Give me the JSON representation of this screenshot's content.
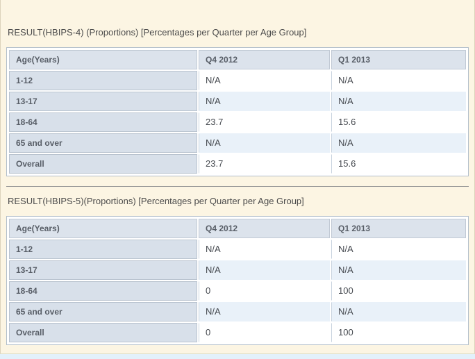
{
  "colors": {
    "page_background": "#fcf5e3",
    "table_header_bg": "#dce3ec",
    "age_column_bg": "#d8e0ea",
    "alt_row_bg": "#e9f1f9",
    "table_border": "#b1becb",
    "separator": "#969696",
    "bottom_strip_bg": "#e3f1fb"
  },
  "sections": [
    {
      "title": "RESULT(HBIPS-4) (Proportions) [Percentages per Quarter per Age Group]",
      "table": {
        "columns": [
          "Age(Years)",
          "Q4 2012",
          "Q1 2013"
        ],
        "rows": [
          {
            "age": "1-12",
            "values": [
              "N/A",
              "N/A"
            ]
          },
          {
            "age": "13-17",
            "values": [
              "N/A",
              "N/A"
            ]
          },
          {
            "age": "18-64",
            "values": [
              "23.7",
              "15.6"
            ]
          },
          {
            "age": "65 and over",
            "values": [
              "N/A",
              "N/A"
            ]
          },
          {
            "age": "Overall",
            "values": [
              "23.7",
              "15.6"
            ]
          }
        ]
      }
    },
    {
      "title": "RESULT(HBIPS-5)(Proportions) [Percentages per Quarter per Age Group]",
      "table": {
        "columns": [
          "Age(Years)",
          "Q4 2012",
          "Q1 2013"
        ],
        "rows": [
          {
            "age": "1-12",
            "values": [
              "N/A",
              "N/A"
            ]
          },
          {
            "age": "13-17",
            "values": [
              "N/A",
              "N/A"
            ]
          },
          {
            "age": "18-64",
            "values": [
              "0",
              "100"
            ]
          },
          {
            "age": "65 and over",
            "values": [
              "N/A",
              "N/A"
            ]
          },
          {
            "age": "Overall",
            "values": [
              "0",
              "100"
            ]
          }
        ]
      }
    }
  ]
}
